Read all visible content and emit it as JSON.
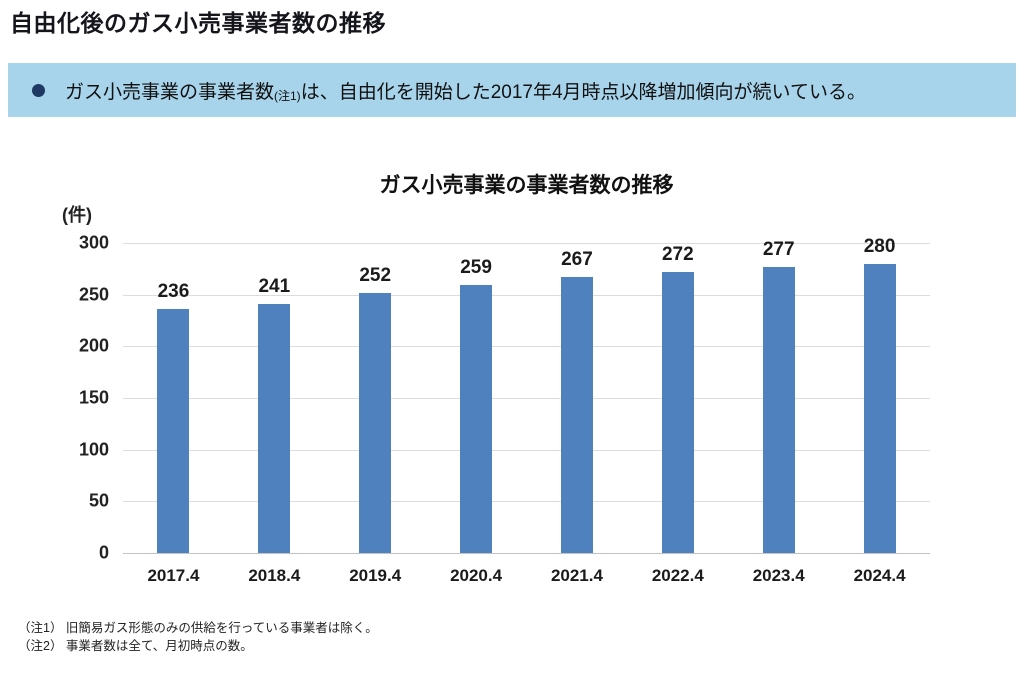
{
  "page": {
    "title": "自由化後のガス小売事業者数の推移"
  },
  "banner": {
    "bullet_icon": "circle-bullet",
    "text_before": "ガス小売事業の事業者数",
    "note_ref": "(注1)",
    "text_after": "は、自由化を開始した2017年4月時点以降増加傾向が続いている。"
  },
  "chart_data": {
    "type": "bar",
    "title": "ガス小売事業の事業者数の推移",
    "unit_label": "(件)",
    "categories": [
      "2017.4",
      "2018.4",
      "2019.4",
      "2020.4",
      "2021.4",
      "2022.4",
      "2023.4",
      "2024.4"
    ],
    "values": [
      236,
      241,
      252,
      259,
      267,
      272,
      277,
      280
    ],
    "xlabel": "",
    "ylabel": "件",
    "ylim": [
      0,
      300
    ],
    "yticks": [
      0,
      50,
      100,
      150,
      200,
      250,
      300
    ],
    "grid": true,
    "legend_position": "none",
    "bar_color": "#4E81BD"
  },
  "footnotes": [
    "（注1） 旧簡易ガス形態のみの供給を行っている事業者は除く。",
    "（注2） 事業者数は全て、月初時点の数。"
  ],
  "colors": {
    "banner_bg": "#A7D4EA",
    "bullet": "#1F3864",
    "bar": "#4E81BD",
    "gridline": "#DCDCDC",
    "title_text": "#15151C"
  }
}
